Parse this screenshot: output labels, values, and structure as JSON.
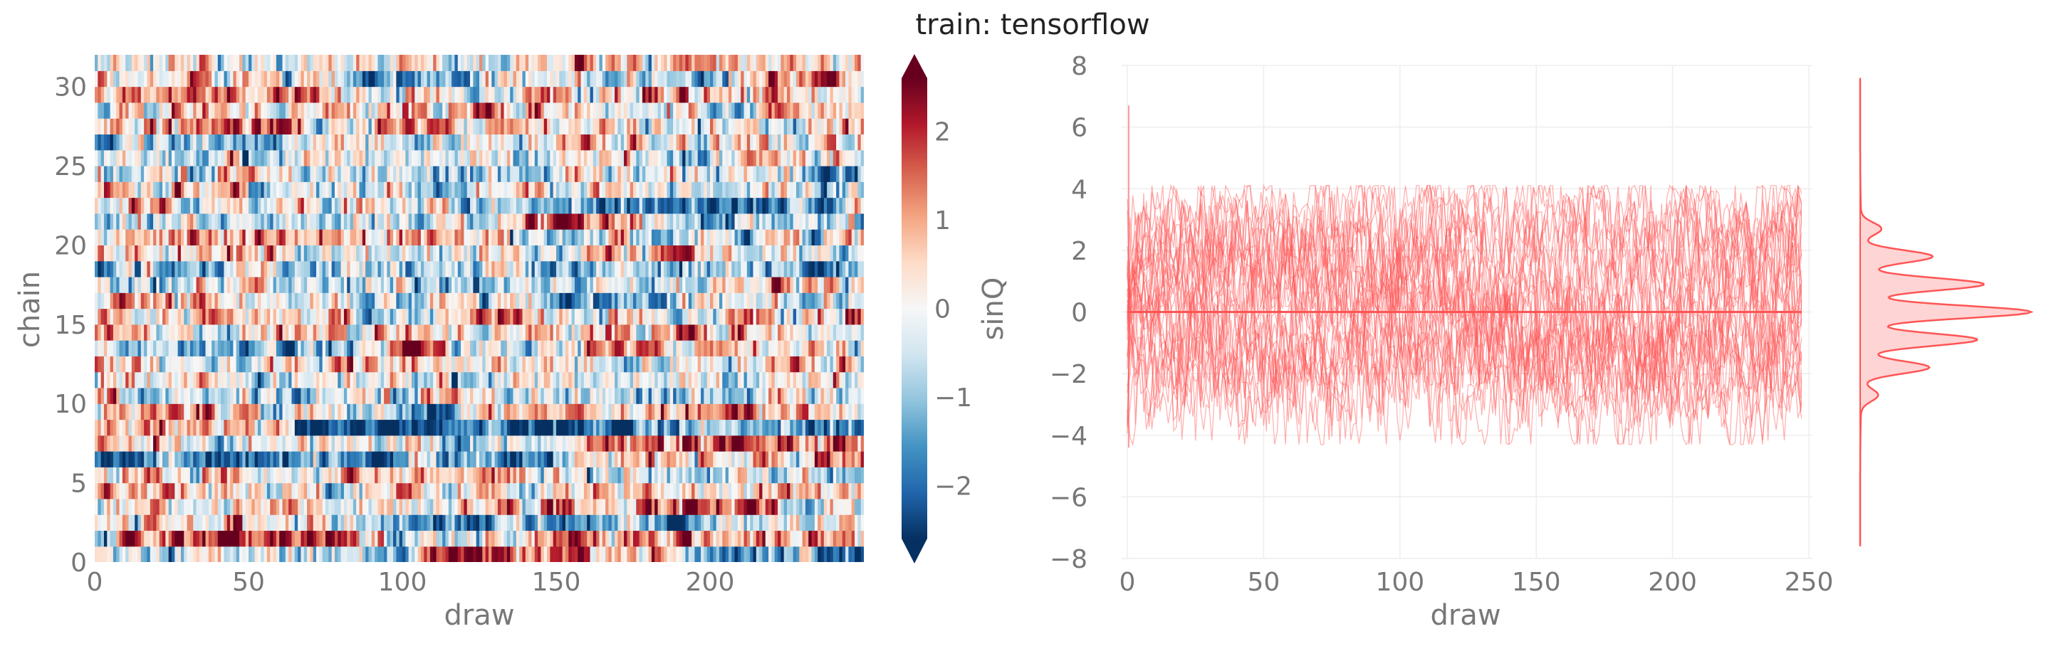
{
  "title": "train: tensorflow",
  "chart_data": [
    {
      "type": "heatmap",
      "xlabel": "draw",
      "ylabel": "chain",
      "x_range": [
        0,
        250
      ],
      "y_range": [
        0,
        32
      ],
      "n_draws": 250,
      "n_chains": 32,
      "x_ticks": [
        0,
        50,
        100,
        150,
        200
      ],
      "y_ticks": [
        0,
        5,
        10,
        15,
        20,
        25,
        30
      ],
      "colormap": "RdBu_r",
      "colormap_stops": [
        "#053061",
        "#2166ac",
        "#4393c3",
        "#92c5de",
        "#d1e5f0",
        "#f7f7f7",
        "#fddbc7",
        "#f4a582",
        "#d6604d",
        "#b2182b",
        "#67001f"
      ],
      "colorbar": {
        "label": "sinQ",
        "range": [
          -2.6,
          2.6
        ],
        "ticks": [
          2,
          1,
          0,
          -1,
          -2
        ],
        "tick_labels": [
          "2",
          "1",
          "0",
          "−1",
          "−2"
        ],
        "extend": "both"
      }
    },
    {
      "type": "line",
      "xlabel": "draw",
      "ylabel": "",
      "xlim": [
        0,
        250
      ],
      "ylim": [
        -8,
        8
      ],
      "x_ticks": [
        0,
        50,
        100,
        150,
        200,
        250
      ],
      "y_ticks": [
        8,
        6,
        4,
        2,
        0,
        -2,
        -4,
        -6,
        -8
      ],
      "y_tick_labels": [
        "8",
        "6",
        "4",
        "2",
        "0",
        "−2",
        "−4",
        "−6",
        "−8"
      ],
      "n_chains": 32,
      "color": "#ff5555",
      "mean_value": 0.0,
      "grid": true,
      "observed_range": [
        -4.4,
        6.7
      ],
      "marginal": {
        "type": "density",
        "orientation": "vertical",
        "peaks": [
          0,
          0.9,
          -0.9,
          1.8,
          -1.8,
          2.7,
          -2.7
        ],
        "relative_heights": [
          1.0,
          0.72,
          0.68,
          0.42,
          0.4,
          0.12,
          0.1
        ]
      }
    }
  ]
}
